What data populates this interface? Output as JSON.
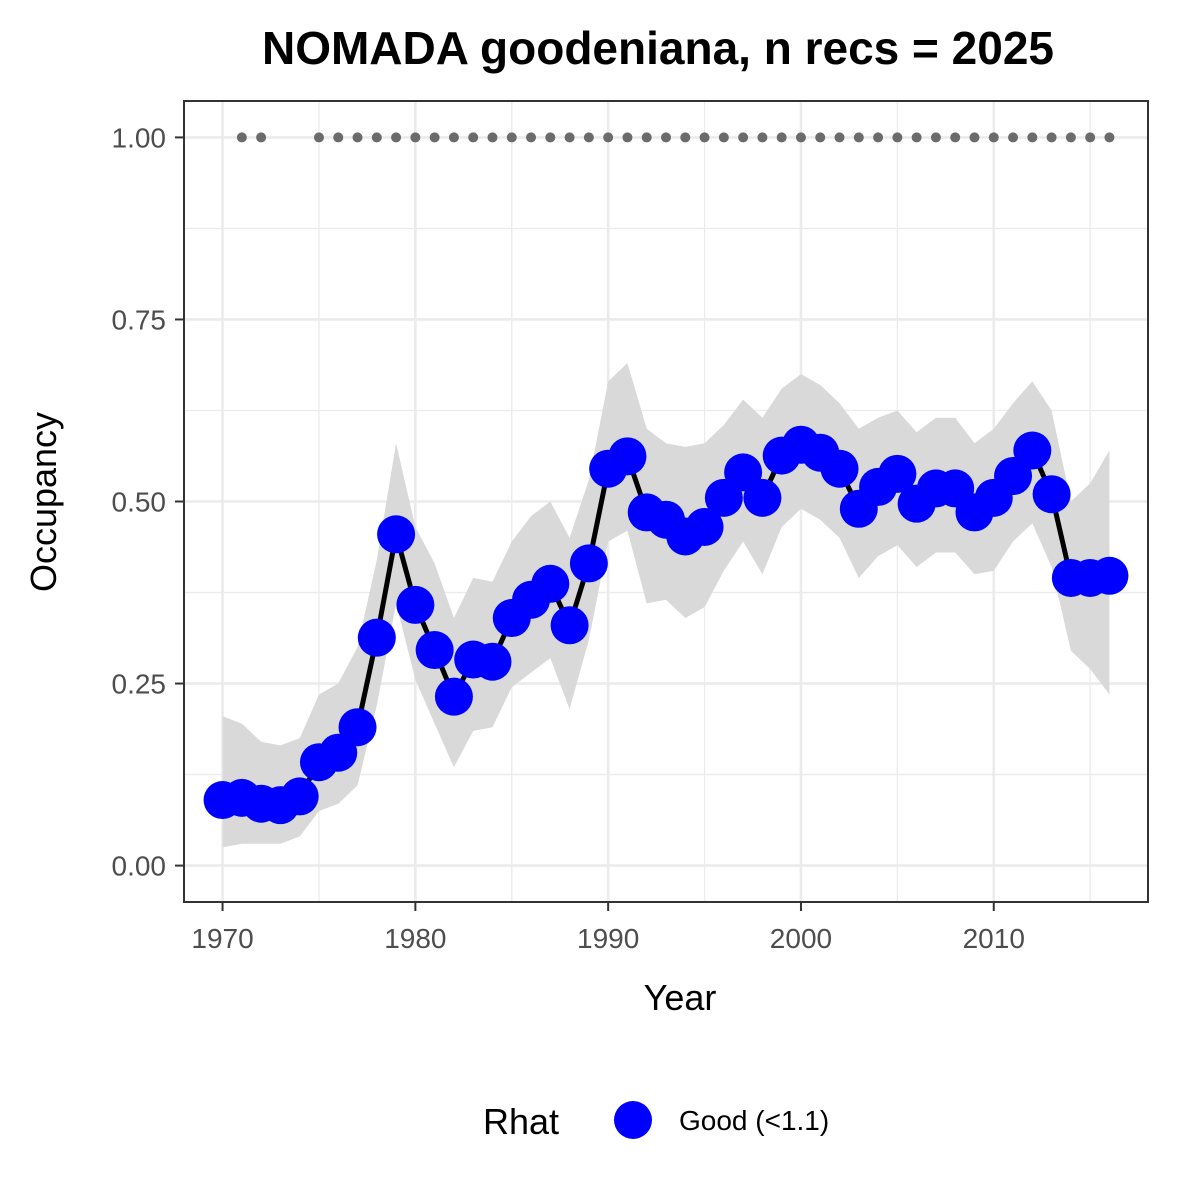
{
  "chart_data": {
    "type": "line",
    "title": "NOMADA goodeniana, n recs = 2025",
    "xlabel": "Year",
    "ylabel": "Occupancy",
    "xlim": [
      1968,
      2018
    ],
    "ylim": [
      -0.05,
      1.05
    ],
    "x_ticks": [
      1970,
      1980,
      1990,
      2000,
      2010
    ],
    "y_ticks": [
      0.0,
      0.25,
      0.5,
      0.75,
      1.0
    ],
    "y_tick_labels": [
      "0.00",
      "0.25",
      "0.50",
      "0.75",
      "1.00"
    ],
    "grid": true,
    "x": [
      1970,
      1971,
      1972,
      1973,
      1974,
      1975,
      1976,
      1977,
      1978,
      1979,
      1980,
      1981,
      1982,
      1983,
      1984,
      1985,
      1986,
      1987,
      1988,
      1989,
      1990,
      1991,
      1992,
      1993,
      1994,
      1995,
      1996,
      1997,
      1998,
      1999,
      2000,
      2001,
      2002,
      2003,
      2004,
      2005,
      2006,
      2007,
      2008,
      2009,
      2010,
      2011,
      2012,
      2013,
      2014,
      2015,
      2016
    ],
    "series": [
      {
        "values": [
          0.09,
          0.093,
          0.085,
          0.083,
          0.095,
          0.142,
          0.155,
          0.19,
          0.313,
          0.455,
          0.358,
          0.296,
          0.232,
          0.283,
          0.28,
          0.34,
          0.365,
          0.387,
          0.33,
          0.415,
          0.545,
          0.562,
          0.485,
          0.475,
          0.452,
          0.465,
          0.505,
          0.54,
          0.505,
          0.563,
          0.578,
          0.567,
          0.545,
          0.49,
          0.52,
          0.538,
          0.497,
          0.518,
          0.518,
          0.485,
          0.505,
          0.535,
          0.57,
          0.51,
          0.395,
          0.395,
          0.398
        ],
        "lower": [
          0.025,
          0.03,
          0.03,
          0.03,
          0.04,
          0.075,
          0.085,
          0.11,
          0.22,
          0.36,
          0.255,
          0.195,
          0.135,
          0.185,
          0.19,
          0.245,
          0.265,
          0.285,
          0.215,
          0.31,
          0.445,
          0.46,
          0.36,
          0.365,
          0.34,
          0.355,
          0.405,
          0.445,
          0.4,
          0.465,
          0.49,
          0.475,
          0.45,
          0.395,
          0.425,
          0.44,
          0.41,
          0.43,
          0.43,
          0.4,
          0.405,
          0.445,
          0.47,
          0.41,
          0.295,
          0.27,
          0.235
        ],
        "upper": [
          0.205,
          0.195,
          0.17,
          0.165,
          0.175,
          0.235,
          0.25,
          0.3,
          0.42,
          0.58,
          0.465,
          0.415,
          0.34,
          0.395,
          0.39,
          0.445,
          0.48,
          0.5,
          0.45,
          0.53,
          0.665,
          0.69,
          0.6,
          0.58,
          0.575,
          0.58,
          0.605,
          0.64,
          0.615,
          0.655,
          0.675,
          0.66,
          0.635,
          0.6,
          0.615,
          0.625,
          0.595,
          0.615,
          0.615,
          0.58,
          0.6,
          0.635,
          0.665,
          0.625,
          0.5,
          0.525,
          0.57
        ],
        "rhat": [
          "Good (<1.1)",
          "Good (<1.1)",
          "Good (<1.1)",
          "Good (<1.1)",
          "Good (<1.1)",
          "Good (<1.1)",
          "Good (<1.1)",
          "Good (<1.1)",
          "Good (<1.1)",
          "Good (<1.1)",
          "Good (<1.1)",
          "Good (<1.1)",
          "Good (<1.1)",
          "Good (<1.1)",
          "Good (<1.1)",
          "Good (<1.1)",
          "Good (<1.1)",
          "Good (<1.1)",
          "Good (<1.1)",
          "Good (<1.1)",
          "Good (<1.1)",
          "Good (<1.1)",
          "Good (<1.1)",
          "Good (<1.1)",
          "Good (<1.1)",
          "Good (<1.1)",
          "Good (<1.1)",
          "Good (<1.1)",
          "Good (<1.1)",
          "Good (<1.1)",
          "Good (<1.1)",
          "Good (<1.1)",
          "Good (<1.1)",
          "Good (<1.1)",
          "Good (<1.1)",
          "Good (<1.1)",
          "Good (<1.1)",
          "Good (<1.1)",
          "Good (<1.1)",
          "Good (<1.1)",
          "Good (<1.1)",
          "Good (<1.1)",
          "Good (<1.1)",
          "Good (<1.1)",
          "Good (<1.1)",
          "Good (<1.1)",
          "Good (<1.1)"
        ]
      }
    ],
    "record_years": [
      1971,
      1972,
      1975,
      1976,
      1977,
      1978,
      1979,
      1980,
      1981,
      1982,
      1983,
      1984,
      1985,
      1986,
      1987,
      1988,
      1989,
      1990,
      1991,
      1992,
      1993,
      1994,
      1995,
      1996,
      1997,
      1998,
      1999,
      2000,
      2001,
      2002,
      2003,
      2004,
      2005,
      2006,
      2007,
      2008,
      2009,
      2010,
      2011,
      2012,
      2013,
      2014,
      2015,
      2016
    ],
    "record_value": 1.0,
    "legend": {
      "title": "Rhat",
      "position": "bottom",
      "entries": [
        {
          "label": "Good (<1.1)",
          "color": "#0000ff"
        }
      ]
    },
    "colors": {
      "points": "#0000ff",
      "line": "#000000",
      "ribbon": "#d9d9d9",
      "records": "#6b6b6b",
      "grid": "#ebebeb",
      "panel_border": "#333333"
    }
  }
}
